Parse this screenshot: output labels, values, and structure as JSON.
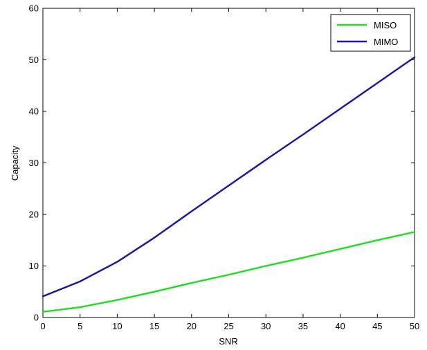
{
  "chart_data": {
    "type": "line",
    "title": "",
    "xlabel": "SNR",
    "ylabel": "Capacity",
    "xlim": [
      0,
      50
    ],
    "ylim": [
      0,
      60
    ],
    "xticks": [
      "0",
      "5",
      "10",
      "15",
      "20",
      "25",
      "30",
      "35",
      "40",
      "45",
      "50"
    ],
    "yticks": [
      "0",
      "10",
      "20",
      "30",
      "40",
      "50",
      "60"
    ],
    "grid": false,
    "legend_position": "top-right",
    "x": [
      0,
      5,
      10,
      15,
      20,
      25,
      30,
      35,
      40,
      45,
      50
    ],
    "series": [
      {
        "name": "MISO",
        "color": "#22dd22",
        "values": [
          1.1,
          2.0,
          3.4,
          5.0,
          6.7,
          8.3,
          10.0,
          11.6,
          13.3,
          15.0,
          16.6
        ]
      },
      {
        "name": "MIMO",
        "color": "#1a1a9e",
        "values": [
          4.1,
          7.0,
          10.8,
          15.5,
          20.6,
          25.6,
          30.6,
          35.5,
          40.5,
          45.5,
          50.5
        ]
      }
    ]
  }
}
